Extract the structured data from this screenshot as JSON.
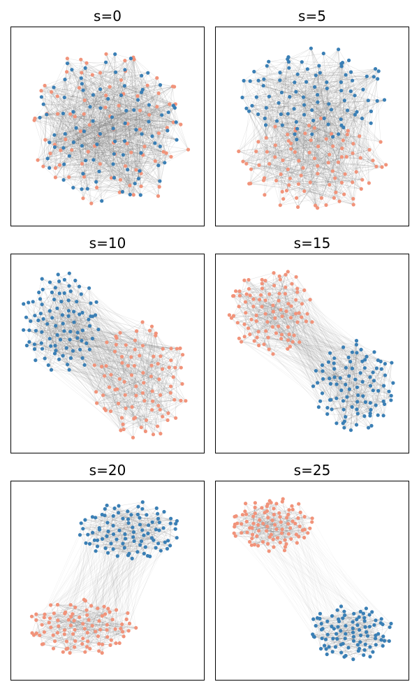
{
  "colors": {
    "group_a": "#3a7fb5",
    "group_b": "#f1937a",
    "edge": "#6e6e6e"
  },
  "panels": [
    {
      "title": "s=0"
    },
    {
      "title": "s=5"
    },
    {
      "title": "s=10"
    },
    {
      "title": "s=15"
    },
    {
      "title": "s=20"
    },
    {
      "title": "s=25"
    }
  ]
}
